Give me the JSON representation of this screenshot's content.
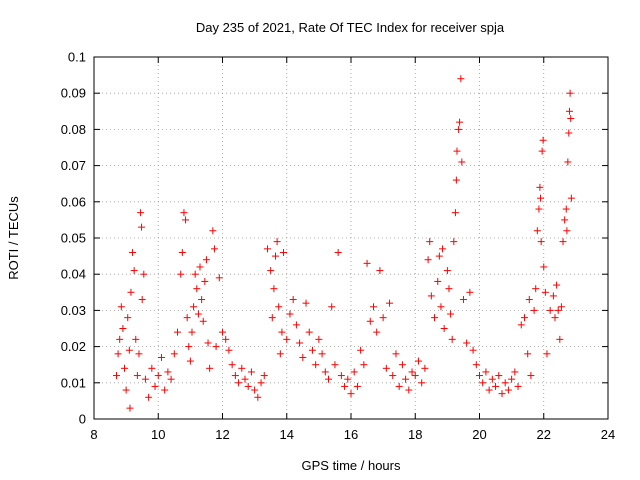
{
  "chart_data": {
    "type": "scatter",
    "title": "Day 235 of 2021, Rate Of TEC Index for receiver spja",
    "xlabel": "GPS time / hours",
    "ylabel": "ROTI / TECUs",
    "xlim": [
      8,
      24
    ],
    "ylim": [
      0,
      0.1
    ],
    "xticks": [
      8,
      10,
      12,
      14,
      16,
      18,
      20,
      22,
      24
    ],
    "xtick_labels": [
      "8",
      "10",
      "12",
      "14",
      "16",
      "18",
      "20",
      "22",
      "24"
    ],
    "yticks": [
      0,
      0.01,
      0.02,
      0.03,
      0.04,
      0.05,
      0.06,
      0.07,
      0.08,
      0.09,
      0.1
    ],
    "ytick_labels": [
      "0",
      "0.01",
      "0.02",
      "0.03",
      "0.04",
      "0.05",
      "0.06",
      "0.07",
      "0.08",
      "0.09",
      "0.1"
    ],
    "grid": true,
    "marker": "+",
    "marker_color": "#ff0000",
    "series": [
      {
        "name": "ROTI",
        "points": [
          [
            8.7,
            0.012
          ],
          [
            8.75,
            0.018
          ],
          [
            8.8,
            0.022
          ],
          [
            8.85,
            0.031
          ],
          [
            8.9,
            0.025
          ],
          [
            8.95,
            0.014
          ],
          [
            9.0,
            0.008
          ],
          [
            9.05,
            0.028
          ],
          [
            9.1,
            0.019
          ],
          [
            9.12,
            0.003
          ],
          [
            9.15,
            0.035
          ],
          [
            9.2,
            0.046
          ],
          [
            9.25,
            0.041
          ],
          [
            9.3,
            0.022
          ],
          [
            9.35,
            0.012
          ],
          [
            9.4,
            0.018
          ],
          [
            9.45,
            0.057
          ],
          [
            9.48,
            0.053
          ],
          [
            9.5,
            0.033
          ],
          [
            9.55,
            0.04
          ],
          [
            9.6,
            0.011
          ],
          [
            9.7,
            0.006
          ],
          [
            9.8,
            0.014
          ],
          [
            9.9,
            0.009
          ],
          [
            10.0,
            0.012
          ],
          [
            10.1,
            0.017
          ],
          [
            10.2,
            0.008
          ],
          [
            10.3,
            0.013
          ],
          [
            10.4,
            0.011
          ],
          [
            10.5,
            0.018
          ],
          [
            10.6,
            0.024
          ],
          [
            10.7,
            0.04
          ],
          [
            10.75,
            0.046
          ],
          [
            10.8,
            0.057
          ],
          [
            10.85,
            0.055
          ],
          [
            10.9,
            0.028
          ],
          [
            10.95,
            0.02
          ],
          [
            11.0,
            0.016
          ],
          [
            11.05,
            0.024
          ],
          [
            11.1,
            0.031
          ],
          [
            11.15,
            0.04
          ],
          [
            11.2,
            0.036
          ],
          [
            11.25,
            0.029
          ],
          [
            11.3,
            0.042
          ],
          [
            11.35,
            0.033
          ],
          [
            11.4,
            0.027
          ],
          [
            11.45,
            0.038
          ],
          [
            11.5,
            0.044
          ],
          [
            11.55,
            0.021
          ],
          [
            11.6,
            0.014
          ],
          [
            11.7,
            0.052
          ],
          [
            11.75,
            0.047
          ],
          [
            11.8,
            0.02
          ],
          [
            11.9,
            0.039
          ],
          [
            12.0,
            0.024
          ],
          [
            12.1,
            0.022
          ],
          [
            12.2,
            0.019
          ],
          [
            12.3,
            0.015
          ],
          [
            12.4,
            0.012
          ],
          [
            12.5,
            0.01
          ],
          [
            12.6,
            0.014
          ],
          [
            12.7,
            0.011
          ],
          [
            12.8,
            0.009
          ],
          [
            12.9,
            0.013
          ],
          [
            13.0,
            0.008
          ],
          [
            13.1,
            0.006
          ],
          [
            13.2,
            0.01
          ],
          [
            13.3,
            0.012
          ],
          [
            13.4,
            0.047
          ],
          [
            13.5,
            0.041
          ],
          [
            13.55,
            0.028
          ],
          [
            13.6,
            0.036
          ],
          [
            13.65,
            0.045
          ],
          [
            13.7,
            0.049
          ],
          [
            13.75,
            0.031
          ],
          [
            13.8,
            0.018
          ],
          [
            13.85,
            0.024
          ],
          [
            13.9,
            0.046
          ],
          [
            14.0,
            0.022
          ],
          [
            14.1,
            0.029
          ],
          [
            14.2,
            0.033
          ],
          [
            14.3,
            0.026
          ],
          [
            14.4,
            0.021
          ],
          [
            14.5,
            0.017
          ],
          [
            14.6,
            0.032
          ],
          [
            14.7,
            0.024
          ],
          [
            14.8,
            0.019
          ],
          [
            14.9,
            0.015
          ],
          [
            15.0,
            0.022
          ],
          [
            15.1,
            0.018
          ],
          [
            15.2,
            0.013
          ],
          [
            15.3,
            0.011
          ],
          [
            15.4,
            0.031
          ],
          [
            15.5,
            0.015
          ],
          [
            15.6,
            0.046
          ],
          [
            15.7,
            0.012
          ],
          [
            15.8,
            0.009
          ],
          [
            15.9,
            0.011
          ],
          [
            16.0,
            0.007
          ],
          [
            16.1,
            0.013
          ],
          [
            16.2,
            0.009
          ],
          [
            16.3,
            0.019
          ],
          [
            16.4,
            0.015
          ],
          [
            16.5,
            0.043
          ],
          [
            16.6,
            0.027
          ],
          [
            16.7,
            0.031
          ],
          [
            16.8,
            0.024
          ],
          [
            16.9,
            0.041
          ],
          [
            17.0,
            0.028
          ],
          [
            17.1,
            0.014
          ],
          [
            17.2,
            0.032
          ],
          [
            17.3,
            0.012
          ],
          [
            17.4,
            0.018
          ],
          [
            17.5,
            0.009
          ],
          [
            17.6,
            0.015
          ],
          [
            17.7,
            0.011
          ],
          [
            17.8,
            0.008
          ],
          [
            17.9,
            0.013
          ],
          [
            18.0,
            0.012
          ],
          [
            18.1,
            0.016
          ],
          [
            18.2,
            0.01
          ],
          [
            18.3,
            0.014
          ],
          [
            18.4,
            0.044
          ],
          [
            18.45,
            0.049
          ],
          [
            18.5,
            0.034
          ],
          [
            18.6,
            0.028
          ],
          [
            18.7,
            0.038
          ],
          [
            18.75,
            0.045
          ],
          [
            18.8,
            0.031
          ],
          [
            18.85,
            0.047
          ],
          [
            18.9,
            0.025
          ],
          [
            19.0,
            0.041
          ],
          [
            19.05,
            0.036
          ],
          [
            19.1,
            0.029
          ],
          [
            19.15,
            0.022
          ],
          [
            19.2,
            0.049
          ],
          [
            19.25,
            0.057
          ],
          [
            19.28,
            0.066
          ],
          [
            19.3,
            0.074
          ],
          [
            19.35,
            0.08
          ],
          [
            19.38,
            0.082
          ],
          [
            19.42,
            0.094
          ],
          [
            19.45,
            0.071
          ],
          [
            19.5,
            0.033
          ],
          [
            19.6,
            0.021
          ],
          [
            19.7,
            0.035
          ],
          [
            19.8,
            0.019
          ],
          [
            19.9,
            0.015
          ],
          [
            20.0,
            0.012
          ],
          [
            20.1,
            0.01
          ],
          [
            20.2,
            0.013
          ],
          [
            20.3,
            0.008
          ],
          [
            20.4,
            0.011
          ],
          [
            20.5,
            0.009
          ],
          [
            20.6,
            0.012
          ],
          [
            20.7,
            0.007
          ],
          [
            20.8,
            0.01
          ],
          [
            20.9,
            0.008
          ],
          [
            21.0,
            0.011
          ],
          [
            21.1,
            0.013
          ],
          [
            21.2,
            0.009
          ],
          [
            21.3,
            0.026
          ],
          [
            21.4,
            0.028
          ],
          [
            21.5,
            0.018
          ],
          [
            21.55,
            0.033
          ],
          [
            21.6,
            0.012
          ],
          [
            21.7,
            0.03
          ],
          [
            21.75,
            0.036
          ],
          [
            21.8,
            0.052
          ],
          [
            21.85,
            0.058
          ],
          [
            21.88,
            0.064
          ],
          [
            21.9,
            0.061
          ],
          [
            21.92,
            0.049
          ],
          [
            21.95,
            0.074
          ],
          [
            21.98,
            0.077
          ],
          [
            22.0,
            0.042
          ],
          [
            22.05,
            0.035
          ],
          [
            22.1,
            0.018
          ],
          [
            22.2,
            0.03
          ],
          [
            22.3,
            0.034
          ],
          [
            22.35,
            0.028
          ],
          [
            22.4,
            0.037
          ],
          [
            22.45,
            0.03
          ],
          [
            22.5,
            0.022
          ],
          [
            22.55,
            0.031
          ],
          [
            22.6,
            0.049
          ],
          [
            22.65,
            0.055
          ],
          [
            22.7,
            0.058
          ],
          [
            22.72,
            0.052
          ],
          [
            22.75,
            0.071
          ],
          [
            22.78,
            0.079
          ],
          [
            22.8,
            0.085
          ],
          [
            22.82,
            0.09
          ],
          [
            22.84,
            0.083
          ],
          [
            22.86,
            0.061
          ]
        ]
      }
    ]
  }
}
